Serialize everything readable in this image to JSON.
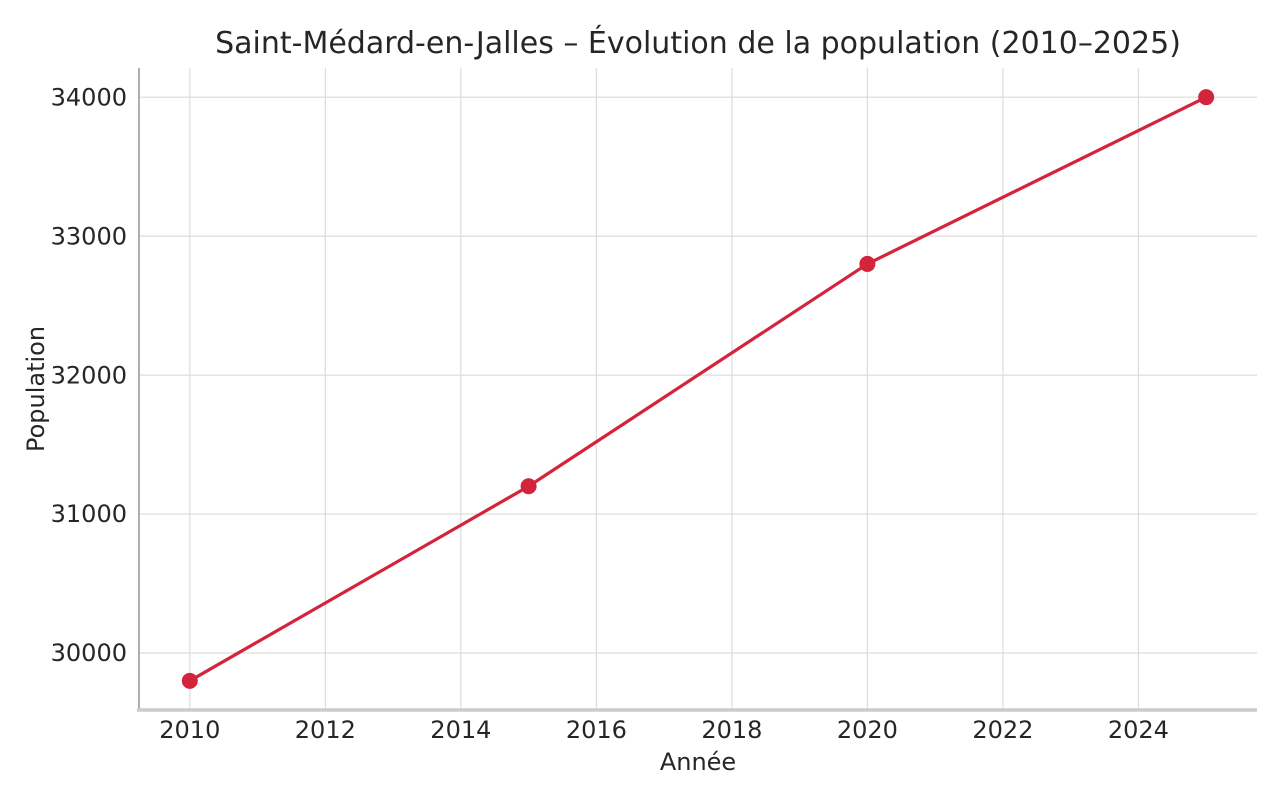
{
  "page": {
    "background_color": "#ffffff",
    "text_color": "#262626"
  },
  "chart_data": {
    "type": "line",
    "title": "Saint-Médard-en-Jalles – Évolution de la population (2010–2025)",
    "xlabel": "Année",
    "ylabel": "Population",
    "x": [
      2010,
      2015,
      2020,
      2025
    ],
    "y": [
      29800,
      31200,
      32800,
      34000
    ],
    "series_name": "Population",
    "xticks": [
      2010,
      2012,
      2014,
      2016,
      2018,
      2020,
      2022,
      2024
    ],
    "yticks": [
      30000,
      31000,
      32000,
      33000,
      34000
    ],
    "xlim": [
      2009.25,
      2025.75
    ],
    "ylim": [
      29590,
      34210
    ],
    "grid": true,
    "legend": "none",
    "marker": "circle",
    "line_color": "#d4243c",
    "marker_color": "#d4243c",
    "grid_color": "#dcdcdc",
    "left_spine_color": "#9b9b9b",
    "bottom_spine_color": "#cbcbcb",
    "tick_label_color": "#262626"
  }
}
